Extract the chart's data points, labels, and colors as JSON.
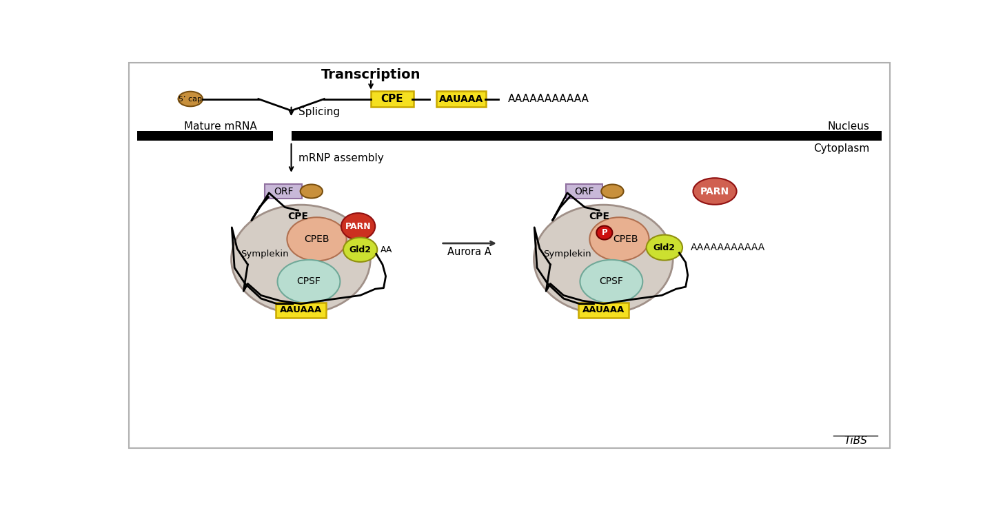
{
  "bg_color": "#ffffff",
  "border_color": "#b0b0b0",
  "yellow_box_color": "#f5e020",
  "yellow_box_edge": "#c8a800",
  "purple_box_color": "#c8b8d8",
  "purple_box_edge": "#9070a0",
  "symplekin_color": "#d5cdc5",
  "symplekin_edge": "#a09088",
  "cpeb_color": "#e8b090",
  "cpeb_edge": "#b07050",
  "cpsf_color": "#b8ddd0",
  "cpsf_edge": "#70a898",
  "gld2_color": "#cce030",
  "gld2_edge": "#909010",
  "parn_color": "#cc3020",
  "parn_edge": "#901010",
  "parn_right_color": "#d06050",
  "cap_color": "#c8903c",
  "cap_edge": "#7a5010",
  "p_circle_color": "#cc1010",
  "p_circle_edge": "#700000",
  "line_color": "#000000",
  "transcription": "Transcription",
  "splicing": "Splicing",
  "mature_mrna": "Mature mRNA",
  "nucleus": "Nucleus",
  "cytoplasm": "Cytoplasm",
  "mrnp_assembly": "mRNP assembly",
  "aurora_a": "Aurora A",
  "poly_a_top": "AAAAAAAAAAA",
  "poly_a_right": "AAAAAAAAAAA",
  "aa_label": "AA"
}
